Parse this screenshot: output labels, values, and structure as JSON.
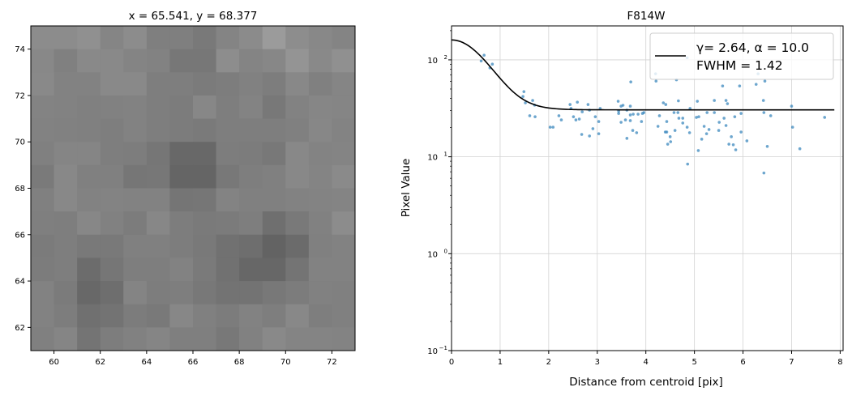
{
  "chart_data": [
    {
      "type": "heatmap",
      "title": "x = 65.541, y = 68.377",
      "colormap": "gray",
      "xlim": [
        59,
        73
      ],
      "ylim": [
        61,
        75
      ],
      "xticks": [
        "60",
        "62",
        "64",
        "66",
        "68",
        "70",
        "72"
      ],
      "yticks": [
        "62",
        "64",
        "66",
        "68",
        "70",
        "72",
        "74"
      ],
      "grayscale_rows_top_to_bottom": [
        [
          "8c",
          "8c",
          "90",
          "85",
          "8c",
          "7f",
          "7f",
          "79",
          "84",
          "8b",
          "9b",
          "8d",
          "88",
          "84"
        ],
        [
          "88",
          "80",
          "89",
          "89",
          "84",
          "82",
          "77",
          "77",
          "8d",
          "84",
          "87",
          "94",
          "89",
          "90"
        ],
        [
          "89",
          "82",
          "82",
          "89",
          "89",
          "7e",
          "7e",
          "7b",
          "7d",
          "81",
          "7d",
          "88",
          "80",
          "85"
        ],
        [
          "83",
          "82",
          "80",
          "81",
          "82",
          "7e",
          "7c",
          "87",
          "7e",
          "83",
          "78",
          "82",
          "86",
          "85"
        ],
        [
          "82",
          "81",
          "80",
          "7e",
          "82",
          "7e",
          "7c",
          "7a",
          "7e",
          "7e",
          "7e",
          "80",
          "87",
          "83"
        ],
        [
          "80",
          "85",
          "85",
          "7e",
          "7d",
          "76",
          "68",
          "68",
          "7d",
          "7c",
          "78",
          "88",
          "83",
          "84"
        ],
        [
          "7a",
          "88",
          "80",
          "80",
          "76",
          "77",
          "65",
          "65",
          "78",
          "7e",
          "80",
          "88",
          "84",
          "8a"
        ],
        [
          "80",
          "88",
          "82",
          "83",
          "82",
          "82",
          "75",
          "76",
          "83",
          "80",
          "80",
          "82",
          "83",
          "84"
        ],
        [
          "7f",
          "7e",
          "87",
          "81",
          "7c",
          "87",
          "7d",
          "7a",
          "7b",
          "7e",
          "6f",
          "79",
          "81",
          "8c"
        ],
        [
          "7b",
          "7e",
          "79",
          "79",
          "80",
          "80",
          "7d",
          "79",
          "71",
          "6e",
          "63",
          "6b",
          "80",
          "82"
        ],
        [
          "7c",
          "7e",
          "6c",
          "76",
          "7e",
          "7e",
          "82",
          "7a",
          "71",
          "67",
          "67",
          "74",
          "82",
          "82"
        ],
        [
          "82",
          "7b",
          "68",
          "6e",
          "84",
          "7d",
          "7e",
          "78",
          "73",
          "73",
          "78",
          "7c",
          "81",
          "80"
        ],
        [
          "82",
          "7d",
          "70",
          "73",
          "7c",
          "79",
          "87",
          "80",
          "7c",
          "82",
          "7e",
          "88",
          "7e",
          "80"
        ],
        [
          "80",
          "85",
          "74",
          "7d",
          "81",
          "85",
          "7f",
          "7f",
          "78",
          "81",
          "89",
          "84",
          "84",
          "83"
        ]
      ]
    },
    {
      "type": "scatter",
      "title": "F814W",
      "xlabel": "Distance from centroid [pix]",
      "ylabel": "Pixel Value",
      "xlim": [
        0,
        8.06
      ],
      "ylim": [
        0.1,
        224
      ],
      "yscale": "log",
      "grid": true,
      "xticks": [
        "0",
        "1",
        "2",
        "3",
        "4",
        "5",
        "6",
        "7",
        "8"
      ],
      "yticks": [
        {
          "base": "10",
          "exp": "−1"
        },
        {
          "base": "10",
          "exp": "0"
        },
        {
          "base": "10",
          "exp": "1"
        },
        {
          "base": "10",
          "exp": "2"
        }
      ],
      "point_color": "#1f77b4",
      "legend": {
        "position": "top-right",
        "line1": "γ= 2.64, α = 10.0",
        "line2": "FWHM = 1.42"
      },
      "fit": {
        "gamma": 2.64,
        "alpha": 10.0,
        "fwhm": 1.42,
        "color": "#000000"
      },
      "points": [
        [
          0.61,
          97.5
        ],
        [
          0.67,
          111.6
        ],
        [
          0.79,
          82.5
        ],
        [
          0.84,
          90.3
        ],
        [
          1.49,
          47.0
        ],
        [
          1.47,
          41.9
        ],
        [
          1.52,
          36.0
        ],
        [
          1.67,
          38.1
        ],
        [
          1.71,
          34.1
        ],
        [
          1.61,
          26.5
        ],
        [
          1.72,
          25.9
        ],
        [
          2.03,
          20.2
        ],
        [
          2.09,
          20.2
        ],
        [
          2.21,
          26.5
        ],
        [
          2.26,
          24.0
        ],
        [
          2.44,
          34.6
        ],
        [
          2.46,
          31.5
        ],
        [
          2.59,
          36.6
        ],
        [
          2.69,
          29.1
        ],
        [
          2.51,
          25.9
        ],
        [
          2.56,
          24.0
        ],
        [
          2.63,
          24.5
        ],
        [
          2.68,
          17.0
        ],
        [
          2.81,
          34.6
        ],
        [
          2.84,
          30.3
        ],
        [
          2.84,
          16.4
        ],
        [
          2.91,
          19.5
        ],
        [
          2.96,
          25.9
        ],
        [
          3.03,
          23.1
        ],
        [
          3.03,
          17.3
        ],
        [
          3.06,
          31.5
        ],
        [
          3.43,
          37.4
        ],
        [
          3.44,
          29.7
        ],
        [
          3.44,
          28.0
        ],
        [
          3.49,
          33.3
        ],
        [
          3.53,
          34.0
        ],
        [
          3.49,
          22.7
        ],
        [
          3.58,
          24.0
        ],
        [
          3.61,
          30.3
        ],
        [
          3.61,
          15.5
        ],
        [
          3.68,
          33.3
        ],
        [
          3.68,
          27.0
        ],
        [
          3.68,
          23.6
        ],
        [
          3.69,
          59.2
        ],
        [
          3.74,
          27.5
        ],
        [
          3.73,
          18.7
        ],
        [
          3.81,
          17.7
        ],
        [
          3.84,
          27.5
        ],
        [
          3.93,
          28.0
        ],
        [
          3.96,
          28.6
        ],
        [
          3.91,
          23.1
        ],
        [
          4.21,
          60.4
        ],
        [
          4.36,
          36.0
        ],
        [
          4.41,
          34.6
        ],
        [
          4.67,
          37.8
        ],
        [
          4.85,
          105
        ],
        [
          4.63,
          62.2
        ],
        [
          4.2,
          71.8
        ],
        [
          4.28,
          26.5
        ],
        [
          4.25,
          20.6
        ],
        [
          4.43,
          23.1
        ],
        [
          4.4,
          18.0
        ],
        [
          4.43,
          18.0
        ],
        [
          4.5,
          16.1
        ],
        [
          4.51,
          14.3
        ],
        [
          4.45,
          13.5
        ],
        [
          4.58,
          28.6
        ],
        [
          4.66,
          28.6
        ],
        [
          4.68,
          25.0
        ],
        [
          4.76,
          25.0
        ],
        [
          4.76,
          22.3
        ],
        [
          4.6,
          18.7
        ],
        [
          4.85,
          20.2
        ],
        [
          4.9,
          17.7
        ],
        [
          4.91,
          31.5
        ],
        [
          4.86,
          8.4
        ],
        [
          5.06,
          37.4
        ],
        [
          5.04,
          25.5
        ],
        [
          5.09,
          25.9
        ],
        [
          5.2,
          20.6
        ],
        [
          5.3,
          19.1
        ],
        [
          5.25,
          17.3
        ],
        [
          5.15,
          15.2
        ],
        [
          5.08,
          11.6
        ],
        [
          5.26,
          28.6
        ],
        [
          5.41,
          38.1
        ],
        [
          5.41,
          28.6
        ],
        [
          5.58,
          53.8
        ],
        [
          5.65,
          38.1
        ],
        [
          5.68,
          35.3
        ],
        [
          5.61,
          25.0
        ],
        [
          5.51,
          22.7
        ],
        [
          5.65,
          21.0
        ],
        [
          5.5,
          18.7
        ],
        [
          5.76,
          16.1
        ],
        [
          5.71,
          13.5
        ],
        [
          5.8,
          13.3
        ],
        [
          5.85,
          11.8
        ],
        [
          5.83,
          25.9
        ],
        [
          5.96,
          28.0
        ],
        [
          5.93,
          53.8
        ],
        [
          5.96,
          18.0
        ],
        [
          6.08,
          14.6
        ],
        [
          6.27,
          55.9
        ],
        [
          6.31,
          71.8
        ],
        [
          6.45,
          60.4
        ],
        [
          6.42,
          38.1
        ],
        [
          6.43,
          28.6
        ],
        [
          6.57,
          26.5
        ],
        [
          6.5,
          12.8
        ],
        [
          6.43,
          6.8
        ],
        [
          7.0,
          33.3
        ],
        [
          7.02,
          20.2
        ],
        [
          7.17,
          12.1
        ],
        [
          7.68,
          25.5
        ]
      ]
    }
  ]
}
